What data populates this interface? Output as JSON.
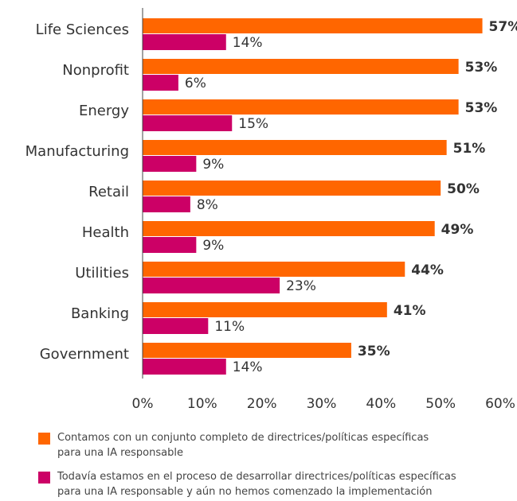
{
  "colors": {
    "series_a": "#ff6600",
    "series_b": "#cc0066",
    "text": "#333333",
    "axis": "#444444"
  },
  "chart_data": {
    "type": "bar",
    "orientation": "horizontal",
    "categories": [
      "Life Sciences",
      "Nonprofit",
      "Energy",
      "Manufacturing",
      "Retail",
      "Health",
      "Utilities",
      "Banking",
      "Government"
    ],
    "series": [
      {
        "name": "Contamos con un conjunto completo de directrices/políticas específicas para una IA responsable",
        "values": [
          57,
          53,
          53,
          51,
          50,
          49,
          44,
          41,
          35
        ],
        "labels": [
          "57%",
          "53%",
          "53%",
          "51%",
          "50%",
          "49%",
          "44%",
          "41%",
          "35%"
        ]
      },
      {
        "name": "Todavía estamos en el proceso de desarrollar directrices/políticas específicas para una IA responsable y aún no hemos comenzado la implementación",
        "values": [
          14,
          6,
          15,
          9,
          8,
          9,
          23,
          11,
          14
        ],
        "labels": [
          "14%",
          "6%",
          "15%",
          "9%",
          "8%",
          "9%",
          "23%",
          "11%",
          "14%"
        ]
      }
    ],
    "xlim": [
      0,
      60
    ],
    "xticks": [
      0,
      10,
      20,
      30,
      40,
      50,
      60
    ],
    "xtick_labels": [
      "0%",
      "10%",
      "20%",
      "30%",
      "40%",
      "50%",
      "60%"
    ],
    "grid": false,
    "legend_position": "bottom"
  },
  "legend": {
    "series_a_lines": [
      "Contamos con un conjunto completo de directrices/políticas específicas",
      "para una IA responsable"
    ],
    "series_b_lines": [
      "Todavía estamos en el proceso de desarrollar directrices/políticas específicas",
      "para una IA responsable y aún no hemos comenzado la implementación"
    ]
  }
}
